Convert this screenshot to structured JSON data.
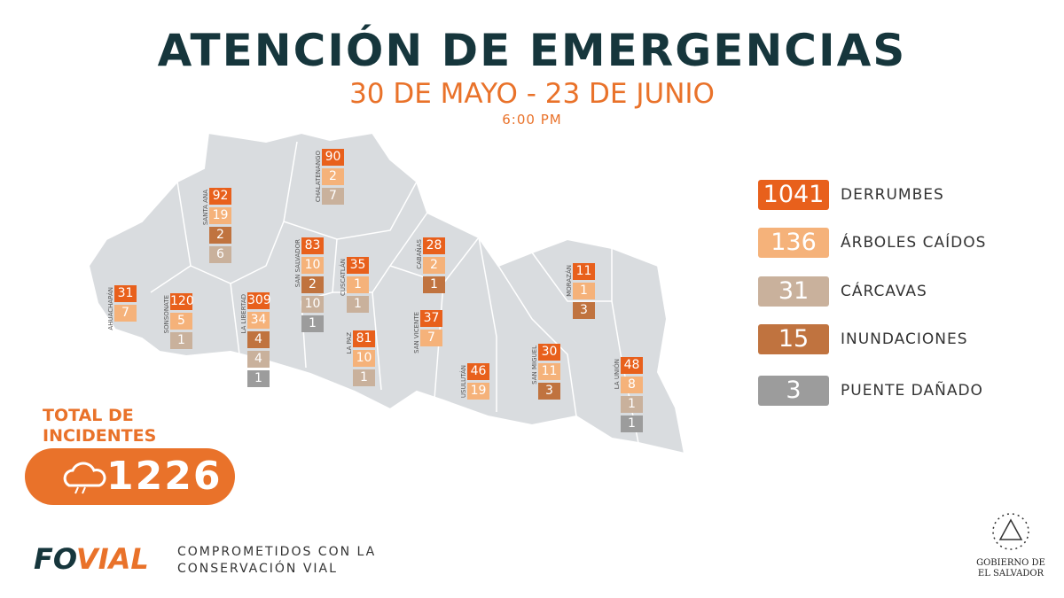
{
  "header": {
    "title": "ATENCIÓN DE EMERGENCIAS",
    "dates": "30 DE MAYO - 23 DE JUNIO",
    "time": "6:00 PM"
  },
  "legend": [
    {
      "value": "1041",
      "label": "DERRUMBES",
      "color": "#e8601c"
    },
    {
      "value": "136",
      "label": "ÁRBOLES CAÍDOS",
      "color": "#f5b27a"
    },
    {
      "value": "31",
      "label": "CÁRCAVAS",
      "color": "#c9b19c"
    },
    {
      "value": "15",
      "label": "INUNDACIONES",
      "color": "#c0733f"
    },
    {
      "value": "3",
      "label": "PUENTE DAÑADO",
      "color": "#9c9c9c"
    }
  ],
  "departments": [
    {
      "name": "AHUACHAPÁN",
      "values": [
        "31",
        "7",
        null,
        null,
        null
      ]
    },
    {
      "name": "SANTA ANA",
      "values": [
        "92",
        "19",
        "6",
        "2",
        null
      ]
    },
    {
      "name": "CHALATENANGO",
      "values": [
        "90",
        "2",
        "7",
        null,
        null
      ]
    },
    {
      "name": "SAN SALVADOR",
      "values": [
        "83",
        "10",
        "10",
        "2",
        "1"
      ]
    },
    {
      "name": "CUSCATLÁN",
      "values": [
        "35",
        "1",
        "1",
        null,
        null
      ]
    },
    {
      "name": "CABAÑAS",
      "values": [
        "28",
        "2",
        null,
        "1",
        null
      ]
    },
    {
      "name": "SONSONATE",
      "values": [
        "120",
        "5",
        "1",
        null,
        null
      ]
    },
    {
      "name": "LA LIBERTAD",
      "values": [
        "309",
        "34",
        "4",
        "4",
        "1"
      ]
    },
    {
      "name": "LA PAZ",
      "values": [
        "81",
        "10",
        "1",
        null,
        null
      ]
    },
    {
      "name": "SAN VICENTE",
      "values": [
        "37",
        "7",
        null,
        null,
        null
      ]
    },
    {
      "name": "USULUTÁN",
      "values": [
        "46",
        "19",
        null,
        null,
        null
      ]
    },
    {
      "name": "SAN MIGUEL",
      "values": [
        "30",
        "11",
        null,
        "3",
        null
      ]
    },
    {
      "name": "MORAZÁN",
      "values": [
        "11",
        "1",
        null,
        "3",
        null
      ]
    },
    {
      "name": "LA UNIÓN",
      "values": [
        "48",
        "8",
        "1",
        null,
        "1"
      ]
    }
  ],
  "total": {
    "label": [
      "TOTAL DE",
      "INCIDENTES"
    ],
    "value": "1226"
  },
  "footer": {
    "logo": [
      "FO",
      "VIAL"
    ],
    "tagline": [
      "COMPROMETIDOS CON LA",
      "CONSERVACIÓN VIAL"
    ],
    "government": [
      "GOBIERNO DE",
      "EL SALVADOR"
    ]
  }
}
